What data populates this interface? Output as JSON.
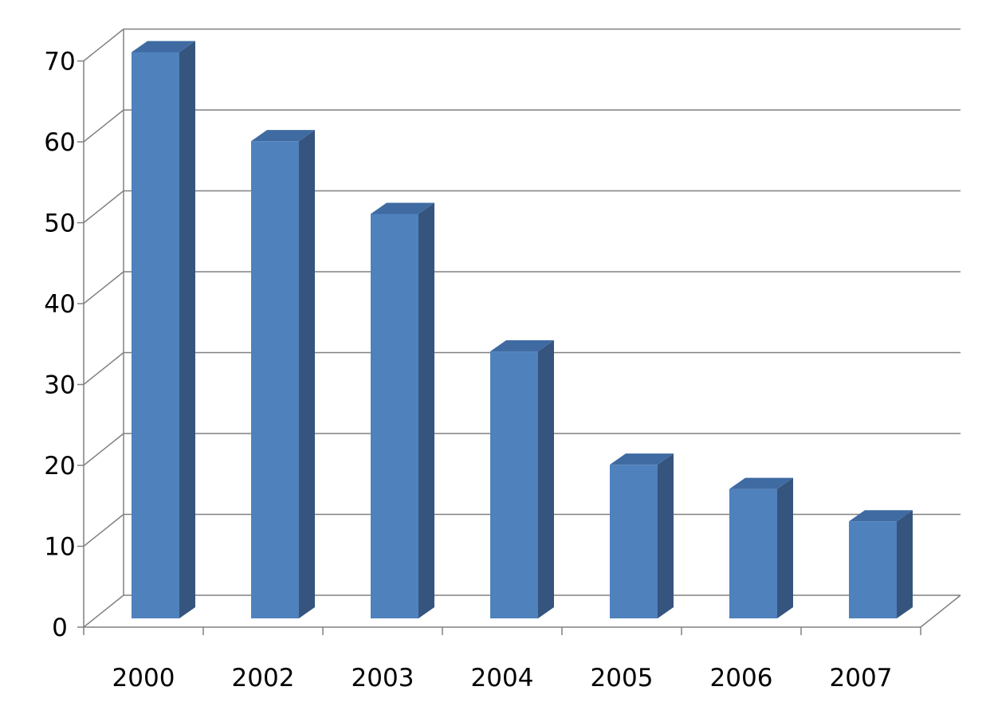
{
  "chart_data": {
    "type": "bar",
    "style": "3d-column",
    "categories": [
      "2000",
      "2002",
      "2003",
      "2004",
      "2005",
      "2006",
      "2007"
    ],
    "series": [
      {
        "values": [
          70,
          59,
          50,
          33,
          19,
          16,
          12
        ]
      }
    ],
    "y_ticks": [
      "0",
      "10",
      "20",
      "30",
      "40",
      "50",
      "60",
      "70"
    ],
    "title": "",
    "xlabel": "",
    "ylabel": "",
    "ylim": [
      0,
      70
    ],
    "grid": true,
    "legend": "none",
    "colors": {
      "bar_front": "#4F81BD",
      "bar_side": "#35557E",
      "bar_top": "#3F6BA2",
      "gridline": "#808080",
      "axis": "#808080"
    }
  }
}
